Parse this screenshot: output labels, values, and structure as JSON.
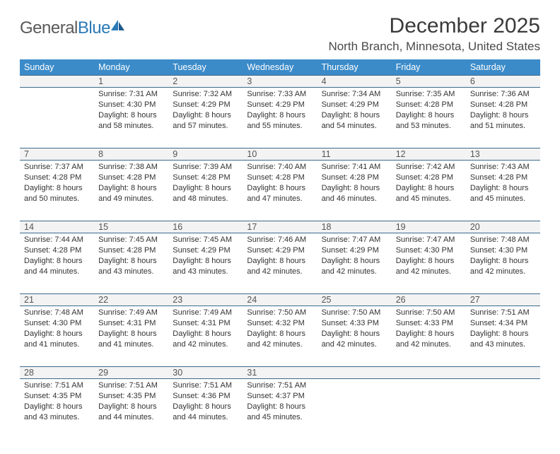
{
  "branding": {
    "logo_general": "General",
    "logo_blue": "Blue"
  },
  "header": {
    "title": "December 2025",
    "location": "North Branch, Minnesota, United States"
  },
  "colors": {
    "header_bg": "#3b8bc9",
    "header_text": "#ffffff",
    "daynum_border": "#3b6a8c",
    "daynum_bg": "#f3f3f3",
    "text": "#333333",
    "logo_gray": "#5a5a5a",
    "logo_blue": "#2a7ab8"
  },
  "weekdays": [
    "Sunday",
    "Monday",
    "Tuesday",
    "Wednesday",
    "Thursday",
    "Friday",
    "Saturday"
  ],
  "weeks": [
    {
      "nums": [
        "",
        "1",
        "2",
        "3",
        "4",
        "5",
        "6"
      ],
      "cells": [
        {
          "empty": true
        },
        {
          "sunrise": "Sunrise: 7:31 AM",
          "sunset": "Sunset: 4:30 PM",
          "day1": "Daylight: 8 hours",
          "day2": "and 58 minutes."
        },
        {
          "sunrise": "Sunrise: 7:32 AM",
          "sunset": "Sunset: 4:29 PM",
          "day1": "Daylight: 8 hours",
          "day2": "and 57 minutes."
        },
        {
          "sunrise": "Sunrise: 7:33 AM",
          "sunset": "Sunset: 4:29 PM",
          "day1": "Daylight: 8 hours",
          "day2": "and 55 minutes."
        },
        {
          "sunrise": "Sunrise: 7:34 AM",
          "sunset": "Sunset: 4:29 PM",
          "day1": "Daylight: 8 hours",
          "day2": "and 54 minutes."
        },
        {
          "sunrise": "Sunrise: 7:35 AM",
          "sunset": "Sunset: 4:28 PM",
          "day1": "Daylight: 8 hours",
          "day2": "and 53 minutes."
        },
        {
          "sunrise": "Sunrise: 7:36 AM",
          "sunset": "Sunset: 4:28 PM",
          "day1": "Daylight: 8 hours",
          "day2": "and 51 minutes."
        }
      ]
    },
    {
      "nums": [
        "7",
        "8",
        "9",
        "10",
        "11",
        "12",
        "13"
      ],
      "cells": [
        {
          "sunrise": "Sunrise: 7:37 AM",
          "sunset": "Sunset: 4:28 PM",
          "day1": "Daylight: 8 hours",
          "day2": "and 50 minutes."
        },
        {
          "sunrise": "Sunrise: 7:38 AM",
          "sunset": "Sunset: 4:28 PM",
          "day1": "Daylight: 8 hours",
          "day2": "and 49 minutes."
        },
        {
          "sunrise": "Sunrise: 7:39 AM",
          "sunset": "Sunset: 4:28 PM",
          "day1": "Daylight: 8 hours",
          "day2": "and 48 minutes."
        },
        {
          "sunrise": "Sunrise: 7:40 AM",
          "sunset": "Sunset: 4:28 PM",
          "day1": "Daylight: 8 hours",
          "day2": "and 47 minutes."
        },
        {
          "sunrise": "Sunrise: 7:41 AM",
          "sunset": "Sunset: 4:28 PM",
          "day1": "Daylight: 8 hours",
          "day2": "and 46 minutes."
        },
        {
          "sunrise": "Sunrise: 7:42 AM",
          "sunset": "Sunset: 4:28 PM",
          "day1": "Daylight: 8 hours",
          "day2": "and 45 minutes."
        },
        {
          "sunrise": "Sunrise: 7:43 AM",
          "sunset": "Sunset: 4:28 PM",
          "day1": "Daylight: 8 hours",
          "day2": "and 45 minutes."
        }
      ]
    },
    {
      "nums": [
        "14",
        "15",
        "16",
        "17",
        "18",
        "19",
        "20"
      ],
      "cells": [
        {
          "sunrise": "Sunrise: 7:44 AM",
          "sunset": "Sunset: 4:28 PM",
          "day1": "Daylight: 8 hours",
          "day2": "and 44 minutes."
        },
        {
          "sunrise": "Sunrise: 7:45 AM",
          "sunset": "Sunset: 4:28 PM",
          "day1": "Daylight: 8 hours",
          "day2": "and 43 minutes."
        },
        {
          "sunrise": "Sunrise: 7:45 AM",
          "sunset": "Sunset: 4:29 PM",
          "day1": "Daylight: 8 hours",
          "day2": "and 43 minutes."
        },
        {
          "sunrise": "Sunrise: 7:46 AM",
          "sunset": "Sunset: 4:29 PM",
          "day1": "Daylight: 8 hours",
          "day2": "and 42 minutes."
        },
        {
          "sunrise": "Sunrise: 7:47 AM",
          "sunset": "Sunset: 4:29 PM",
          "day1": "Daylight: 8 hours",
          "day2": "and 42 minutes."
        },
        {
          "sunrise": "Sunrise: 7:47 AM",
          "sunset": "Sunset: 4:30 PM",
          "day1": "Daylight: 8 hours",
          "day2": "and 42 minutes."
        },
        {
          "sunrise": "Sunrise: 7:48 AM",
          "sunset": "Sunset: 4:30 PM",
          "day1": "Daylight: 8 hours",
          "day2": "and 42 minutes."
        }
      ]
    },
    {
      "nums": [
        "21",
        "22",
        "23",
        "24",
        "25",
        "26",
        "27"
      ],
      "cells": [
        {
          "sunrise": "Sunrise: 7:48 AM",
          "sunset": "Sunset: 4:30 PM",
          "day1": "Daylight: 8 hours",
          "day2": "and 41 minutes."
        },
        {
          "sunrise": "Sunrise: 7:49 AM",
          "sunset": "Sunset: 4:31 PM",
          "day1": "Daylight: 8 hours",
          "day2": "and 41 minutes."
        },
        {
          "sunrise": "Sunrise: 7:49 AM",
          "sunset": "Sunset: 4:31 PM",
          "day1": "Daylight: 8 hours",
          "day2": "and 42 minutes."
        },
        {
          "sunrise": "Sunrise: 7:50 AM",
          "sunset": "Sunset: 4:32 PM",
          "day1": "Daylight: 8 hours",
          "day2": "and 42 minutes."
        },
        {
          "sunrise": "Sunrise: 7:50 AM",
          "sunset": "Sunset: 4:33 PM",
          "day1": "Daylight: 8 hours",
          "day2": "and 42 minutes."
        },
        {
          "sunrise": "Sunrise: 7:50 AM",
          "sunset": "Sunset: 4:33 PM",
          "day1": "Daylight: 8 hours",
          "day2": "and 42 minutes."
        },
        {
          "sunrise": "Sunrise: 7:51 AM",
          "sunset": "Sunset: 4:34 PM",
          "day1": "Daylight: 8 hours",
          "day2": "and 43 minutes."
        }
      ]
    },
    {
      "nums": [
        "28",
        "29",
        "30",
        "31",
        "",
        "",
        ""
      ],
      "cells": [
        {
          "sunrise": "Sunrise: 7:51 AM",
          "sunset": "Sunset: 4:35 PM",
          "day1": "Daylight: 8 hours",
          "day2": "and 43 minutes."
        },
        {
          "sunrise": "Sunrise: 7:51 AM",
          "sunset": "Sunset: 4:35 PM",
          "day1": "Daylight: 8 hours",
          "day2": "and 44 minutes."
        },
        {
          "sunrise": "Sunrise: 7:51 AM",
          "sunset": "Sunset: 4:36 PM",
          "day1": "Daylight: 8 hours",
          "day2": "and 44 minutes."
        },
        {
          "sunrise": "Sunrise: 7:51 AM",
          "sunset": "Sunset: 4:37 PM",
          "day1": "Daylight: 8 hours",
          "day2": "and 45 minutes."
        },
        {
          "empty": true
        },
        {
          "empty": true
        },
        {
          "empty": true
        }
      ]
    }
  ]
}
